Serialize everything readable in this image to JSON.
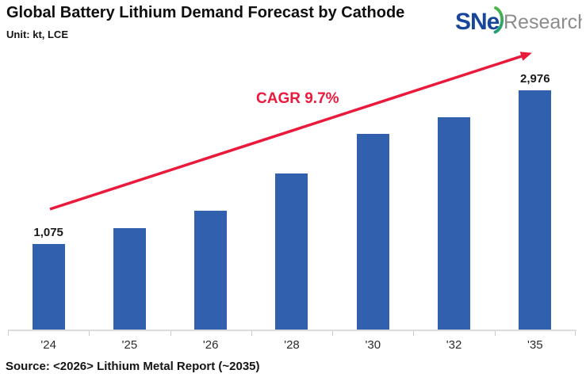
{
  "header": {
    "title": "Global Battery Lithium Demand Forecast by Cathode",
    "unit_label": "Unit: kt, LCE",
    "logo": {
      "brand": "SNe",
      "suffix": "Research"
    }
  },
  "chart_data": {
    "type": "bar",
    "title": "Global Battery Lithium Demand Forecast by Cathode",
    "ylabel": "kt, LCE",
    "xlabel": "",
    "categories": [
      "'24",
      "'25",
      "'26",
      "'28",
      "'30",
      "'32",
      "'35"
    ],
    "values": [
      1075,
      1270,
      1480,
      1940,
      2440,
      2640,
      2976
    ],
    "bar_labels": [
      "1,075",
      "",
      "",
      "",
      "",
      "",
      "2,976"
    ],
    "ylim": [
      0,
      3100
    ],
    "grid": false,
    "legend": "none",
    "annotation": {
      "cagr_label": "CAGR 9.7%"
    }
  },
  "footer": {
    "source": "Source: <2026> Lithium Metal Report (~2035)"
  },
  "colors": {
    "bar": "#3161ae",
    "accent_red": "#ea1a3c",
    "axis_gray": "#dcdcdc",
    "logo_blue": "#17469c",
    "logo_green": "#4cb748",
    "logo_gray": "#8c8c8c"
  }
}
